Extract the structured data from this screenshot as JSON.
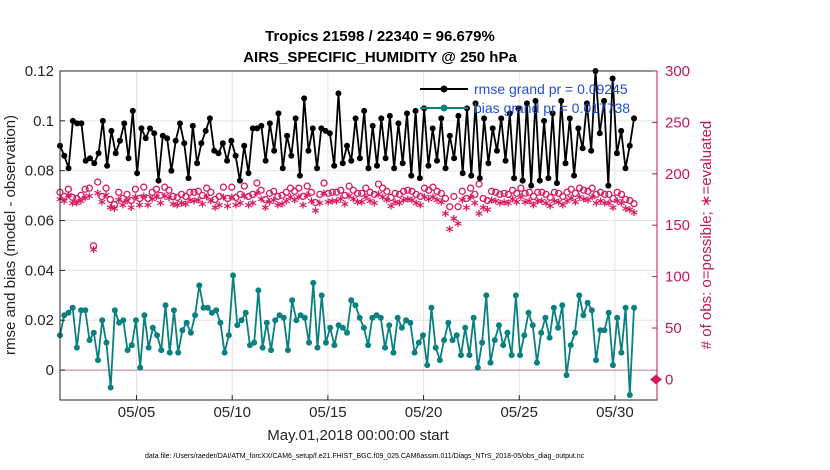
{
  "chart_data": {
    "type": "line",
    "title_line1": "Tropics 21598 / 22340 = 96.679%",
    "title_line2": "AIRS_SPECIFIC_HUMIDITY @ 250 hPa",
    "ylabel_left": "rmse and bias (model - observation)",
    "ylabel_right": "# of obs: o=possible; ∗=evaluated",
    "xlabel": "May.01,2018 00:00:00 start",
    "footnote": "data file: /Users/raeder/DAI/ATM_forcXX/CAM6_setup/f.e21.FHIST_BGC.f09_025.CAM6assim.011/Diags_NTrS_2018-05/obs_diag_output.nc",
    "x_tick_labels": [
      "05/05",
      "05/10",
      "05/15",
      "05/20",
      "05/25",
      "05/30"
    ],
    "x_tick_values": [
      5,
      10,
      15,
      20,
      25,
      30
    ],
    "xlim": [
      1,
      32.2
    ],
    "ylim_left": [
      -0.012,
      0.12
    ],
    "ylim_right": [
      -20,
      300
    ],
    "y_left_ticks": [
      "0",
      "0.02",
      "0.04",
      "0.06",
      "0.08",
      "0.1",
      "0.12"
    ],
    "y_left_tick_values": [
      0,
      0.02,
      0.04,
      0.06,
      0.08,
      0.1,
      0.12
    ],
    "y_right_ticks": [
      "0",
      "50",
      "100",
      "150",
      "200",
      "250",
      "300"
    ],
    "y_right_tick_values": [
      0,
      50,
      100,
      150,
      200,
      250,
      300
    ],
    "series": [
      {
        "name": "rmse grand pr = 0.09245",
        "color": "#000000",
        "axis": "left",
        "marker": "filled-circle",
        "values": [
          0.09,
          0.086,
          0.081,
          0.1,
          0.099,
          0.099,
          0.084,
          0.085,
          0.083,
          0.087,
          0.1,
          0.082,
          0.096,
          0.087,
          0.092,
          0.099,
          0.085,
          0.104,
          0.079,
          0.097,
          0.093,
          0.097,
          0.095,
          0.076,
          0.094,
          0.093,
          0.08,
          0.092,
          0.099,
          0.091,
          0.077,
          0.098,
          0.083,
          0.091,
          0.096,
          0.101,
          0.088,
          0.087,
          0.091,
          0.084,
          0.092,
          0.086,
          0.076,
          0.09,
          0.079,
          0.097,
          0.097,
          0.098,
          0.084,
          0.099,
          0.088,
          0.103,
          0.081,
          0.094,
          0.086,
          0.101,
          0.078,
          0.109,
          0.088,
          0.097,
          0.081,
          0.097,
          0.096,
          0.095,
          0.082,
          0.111,
          0.083,
          0.09,
          0.084,
          0.101,
          0.085,
          0.104,
          0.081,
          0.098,
          0.082,
          0.101,
          0.085,
          0.102,
          0.081,
          0.099,
          0.083,
          0.103,
          0.078,
          0.104,
          0.077,
          0.105,
          0.082,
          0.097,
          0.084,
          0.101,
          0.081,
          0.094,
          0.085,
          0.102,
          0.079,
          0.105,
          0.078,
          0.107,
          0.077,
          0.101,
          0.083,
          0.097,
          0.088,
          0.101,
          0.084,
          0.103,
          0.077,
          0.105,
          0.076,
          0.107,
          0.074,
          0.108,
          0.076,
          0.1,
          0.077,
          0.103,
          0.075,
          0.108,
          0.083,
          0.101,
          0.078,
          0.097,
          0.089,
          0.107,
          0.088,
          0.12,
          0.095,
          0.108,
          0.074,
          0.117,
          0.087,
          0.096,
          0.081,
          0.09,
          0.101
        ]
      },
      {
        "name": "bias grand pr = 0.017738",
        "color": "#0a8080",
        "axis": "left",
        "marker": "filled-circle",
        "values": [
          0.014,
          0.022,
          0.023,
          0.025,
          0.009,
          0.024,
          0.024,
          0.012,
          0.015,
          0.004,
          0.02,
          0.011,
          -0.007,
          0.024,
          0.019,
          0.02,
          0.008,
          0.01,
          0.02,
          0.001,
          0.022,
          0.009,
          0.017,
          0.014,
          0.008,
          0.026,
          0.007,
          0.024,
          0.007,
          0.016,
          0.019,
          0.015,
          0.022,
          0.034,
          0.025,
          0.025,
          0.023,
          0.024,
          0.019,
          0.007,
          0.014,
          0.038,
          0.018,
          0.02,
          0.023,
          0.01,
          0.011,
          0.032,
          0.009,
          0.019,
          0.008,
          0.02,
          0.022,
          0.021,
          0.008,
          0.028,
          0.02,
          0.022,
          0.021,
          0.011,
          0.035,
          0.009,
          0.03,
          0.011,
          0.017,
          0.01,
          0.018,
          0.017,
          0.015,
          0.028,
          0.026,
          0.021,
          0.017,
          0.01,
          0.021,
          0.022,
          0.021,
          0.009,
          0.018,
          0.007,
          0.021,
          0.017,
          0.02,
          0.019,
          0.007,
          0.011,
          0.014,
          0.002,
          0.025,
          0.009,
          0.004,
          0.012,
          0.019,
          0.012,
          0.014,
          0.006,
          0.017,
          0.006,
          0.021,
          0.001,
          0.011,
          0.03,
          0.003,
          0.012,
          0.018,
          0.01,
          0.015,
          0.006,
          0.03,
          0.006,
          0.014,
          0.023,
          0.018,
          0.003,
          0.015,
          0.021,
          0.013,
          0.025,
          0.017,
          0.026,
          -0.002,
          0.01,
          0.015,
          0.03,
          0.022,
          0.027,
          0.024,
          0.004,
          0.016,
          0.016,
          0.023,
          0.002,
          0.021,
          0.007,
          0.025,
          -0.01,
          0.025
        ]
      },
      {
        "name": "possible obs",
        "color": "#d81b60",
        "axis": "right",
        "marker": "circle",
        "values": [
          182,
          178,
          185,
          177,
          176,
          179,
          185,
          186,
          130,
          192,
          178,
          186,
          175,
          170,
          182,
          176,
          180,
          174,
          185,
          176,
          187,
          176,
          182,
          185,
          179,
          187,
          184,
          178,
          177,
          180,
          178,
          182,
          182,
          183,
          179,
          186,
          182,
          175,
          178,
          187,
          176,
          187,
          177,
          180,
          188,
          178,
          180,
          191,
          184,
          175,
          181,
          183,
          178,
          179,
          182,
          186,
          183,
          186,
          178,
          188,
          182,
          172,
          180,
          191,
          181,
          182,
          182,
          184,
          179,
          188,
          184,
          181,
          181,
          186,
          182,
          180,
          190,
          186,
          183,
          177,
          181,
          180,
          183,
          184,
          183,
          180,
          178,
          186,
          184,
          187,
          183,
          181,
          176,
          168,
          178,
          168,
          183,
          176,
          186,
          180,
          190,
          176,
          174,
          183,
          182,
          180,
          181,
          180,
          184,
          181,
          186,
          181,
          182,
          178,
          182,
          182,
          180,
          177,
          182,
          181,
          178,
          182,
          185,
          181,
          186,
          184,
          183,
          186,
          180,
          182,
          180,
          180,
          176,
          182,
          180,
          175,
          174,
          171
        ]
      },
      {
        "name": "evaluated obs",
        "color": "#d81b60",
        "axis": "right",
        "marker": "asterisk",
        "values": [
          174,
          172,
          178,
          170,
          170,
          172,
          175,
          177,
          125,
          180,
          171,
          178,
          166,
          165,
          173,
          168,
          172,
          166,
          176,
          168,
          177,
          168,
          174,
          176,
          170,
          177,
          175,
          169,
          168,
          170,
          169,
          173,
          172,
          173,
          169,
          176,
          172,
          166,
          168,
          176,
          167,
          176,
          168,
          170,
          177,
          168,
          170,
          180,
          174,
          166,
          171,
          173,
          168,
          169,
          172,
          176,
          173,
          176,
          168,
          178,
          172,
          163,
          170,
          180,
          171,
          172,
          172,
          174,
          169,
          177,
          174,
          171,
          171,
          176,
          172,
          170,
          179,
          176,
          173,
          167,
          171,
          170,
          173,
          174,
          173,
          170,
          168,
          176,
          174,
          176,
          173,
          171,
          160,
          145,
          155,
          150,
          173,
          166,
          176,
          170,
          160,
          166,
          164,
          173,
          172,
          170,
          171,
          170,
          174,
          171,
          176,
          171,
          172,
          168,
          172,
          172,
          170,
          167,
          172,
          171,
          168,
          172,
          175,
          171,
          176,
          174,
          173,
          176,
          170,
          172,
          170,
          170,
          166,
          172,
          170,
          165,
          164,
          161
        ]
      }
    ],
    "legend_position": "top-right"
  }
}
